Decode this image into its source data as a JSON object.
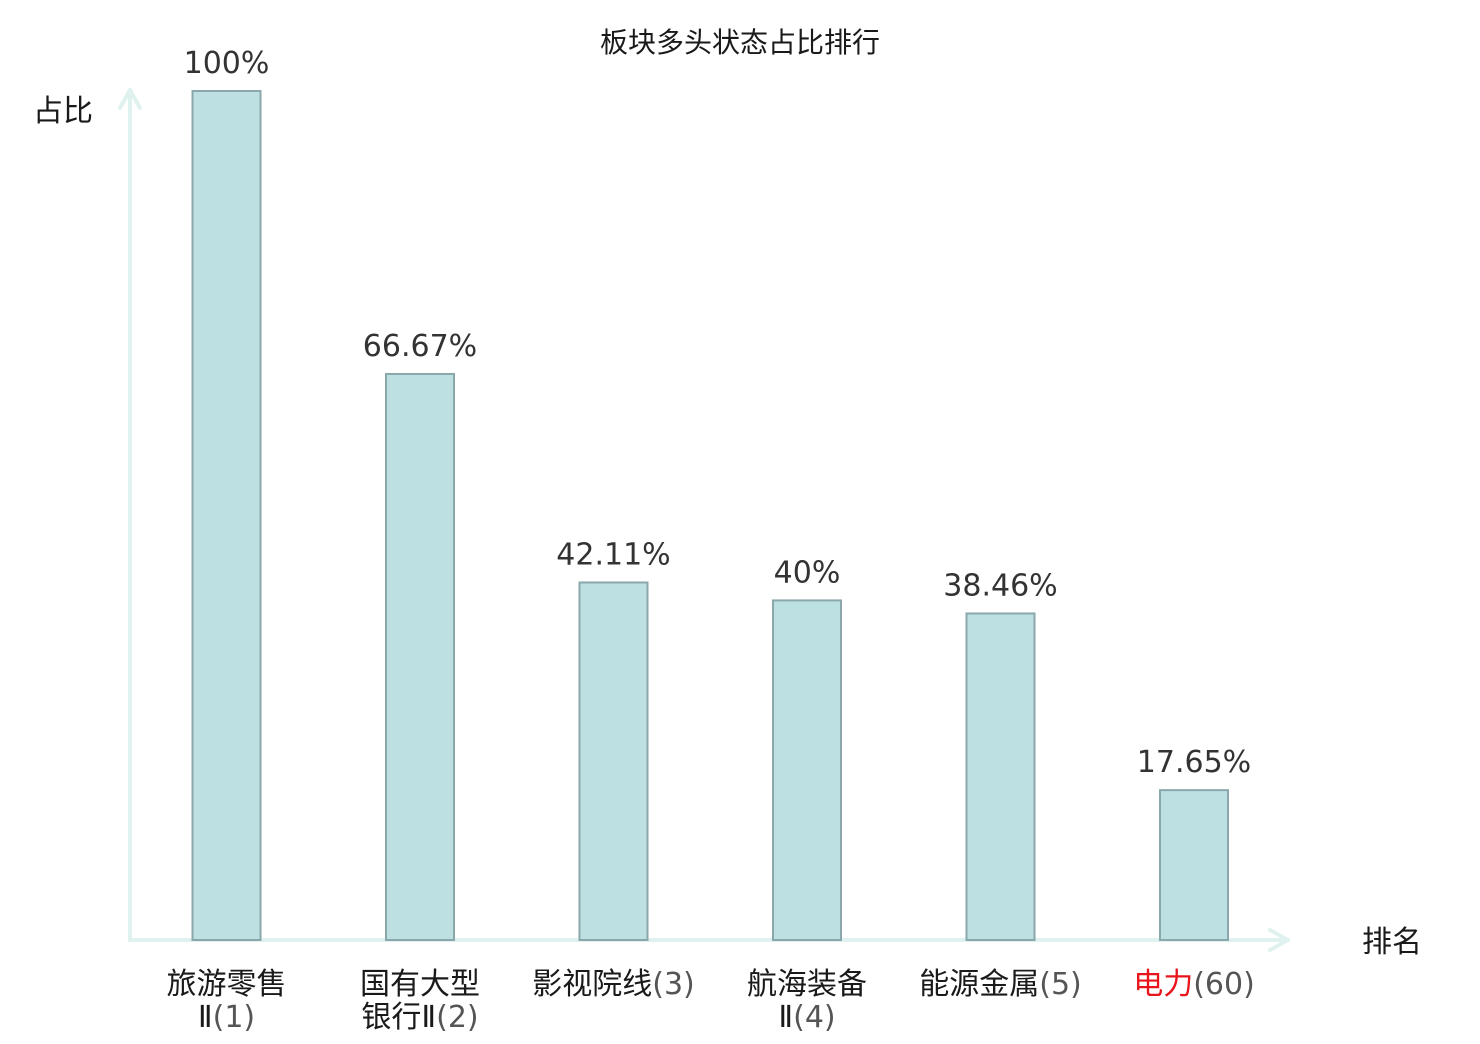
{
  "chart_data": {
    "type": "bar",
    "title": "板块多头状态占比排行",
    "xlabel": "排名",
    "ylabel": "占比",
    "ylim": [
      0,
      100
    ],
    "grid": false,
    "legend": "none",
    "categories": [
      {
        "name_lines": [
          "旅游零售",
          "Ⅱ"
        ],
        "rank": "(1)",
        "highlight": false
      },
      {
        "name_lines": [
          "国有大型",
          "银行Ⅱ"
        ],
        "rank": "(2)",
        "highlight": false
      },
      {
        "name_lines": [
          "影视院线"
        ],
        "rank": "(3)",
        "highlight": false
      },
      {
        "name_lines": [
          "航海装备",
          "Ⅱ"
        ],
        "rank": "(4)",
        "highlight": false
      },
      {
        "name_lines": [
          "能源金属"
        ],
        "rank": "(5)",
        "highlight": false
      },
      {
        "name_lines": [
          "电力"
        ],
        "rank": "(60)",
        "highlight": true
      }
    ],
    "values": [
      100,
      66.67,
      42.11,
      40,
      38.46,
      17.65
    ],
    "value_labels": [
      "100%",
      "66.67%",
      "42.11%",
      "40%",
      "38.46%",
      "17.65%"
    ],
    "colors": {
      "bar_fill": "#bde0e3",
      "bar_stroke": "#8aa7ab",
      "axis": "#dff2ef",
      "highlight_text": "#e8161c"
    }
  }
}
